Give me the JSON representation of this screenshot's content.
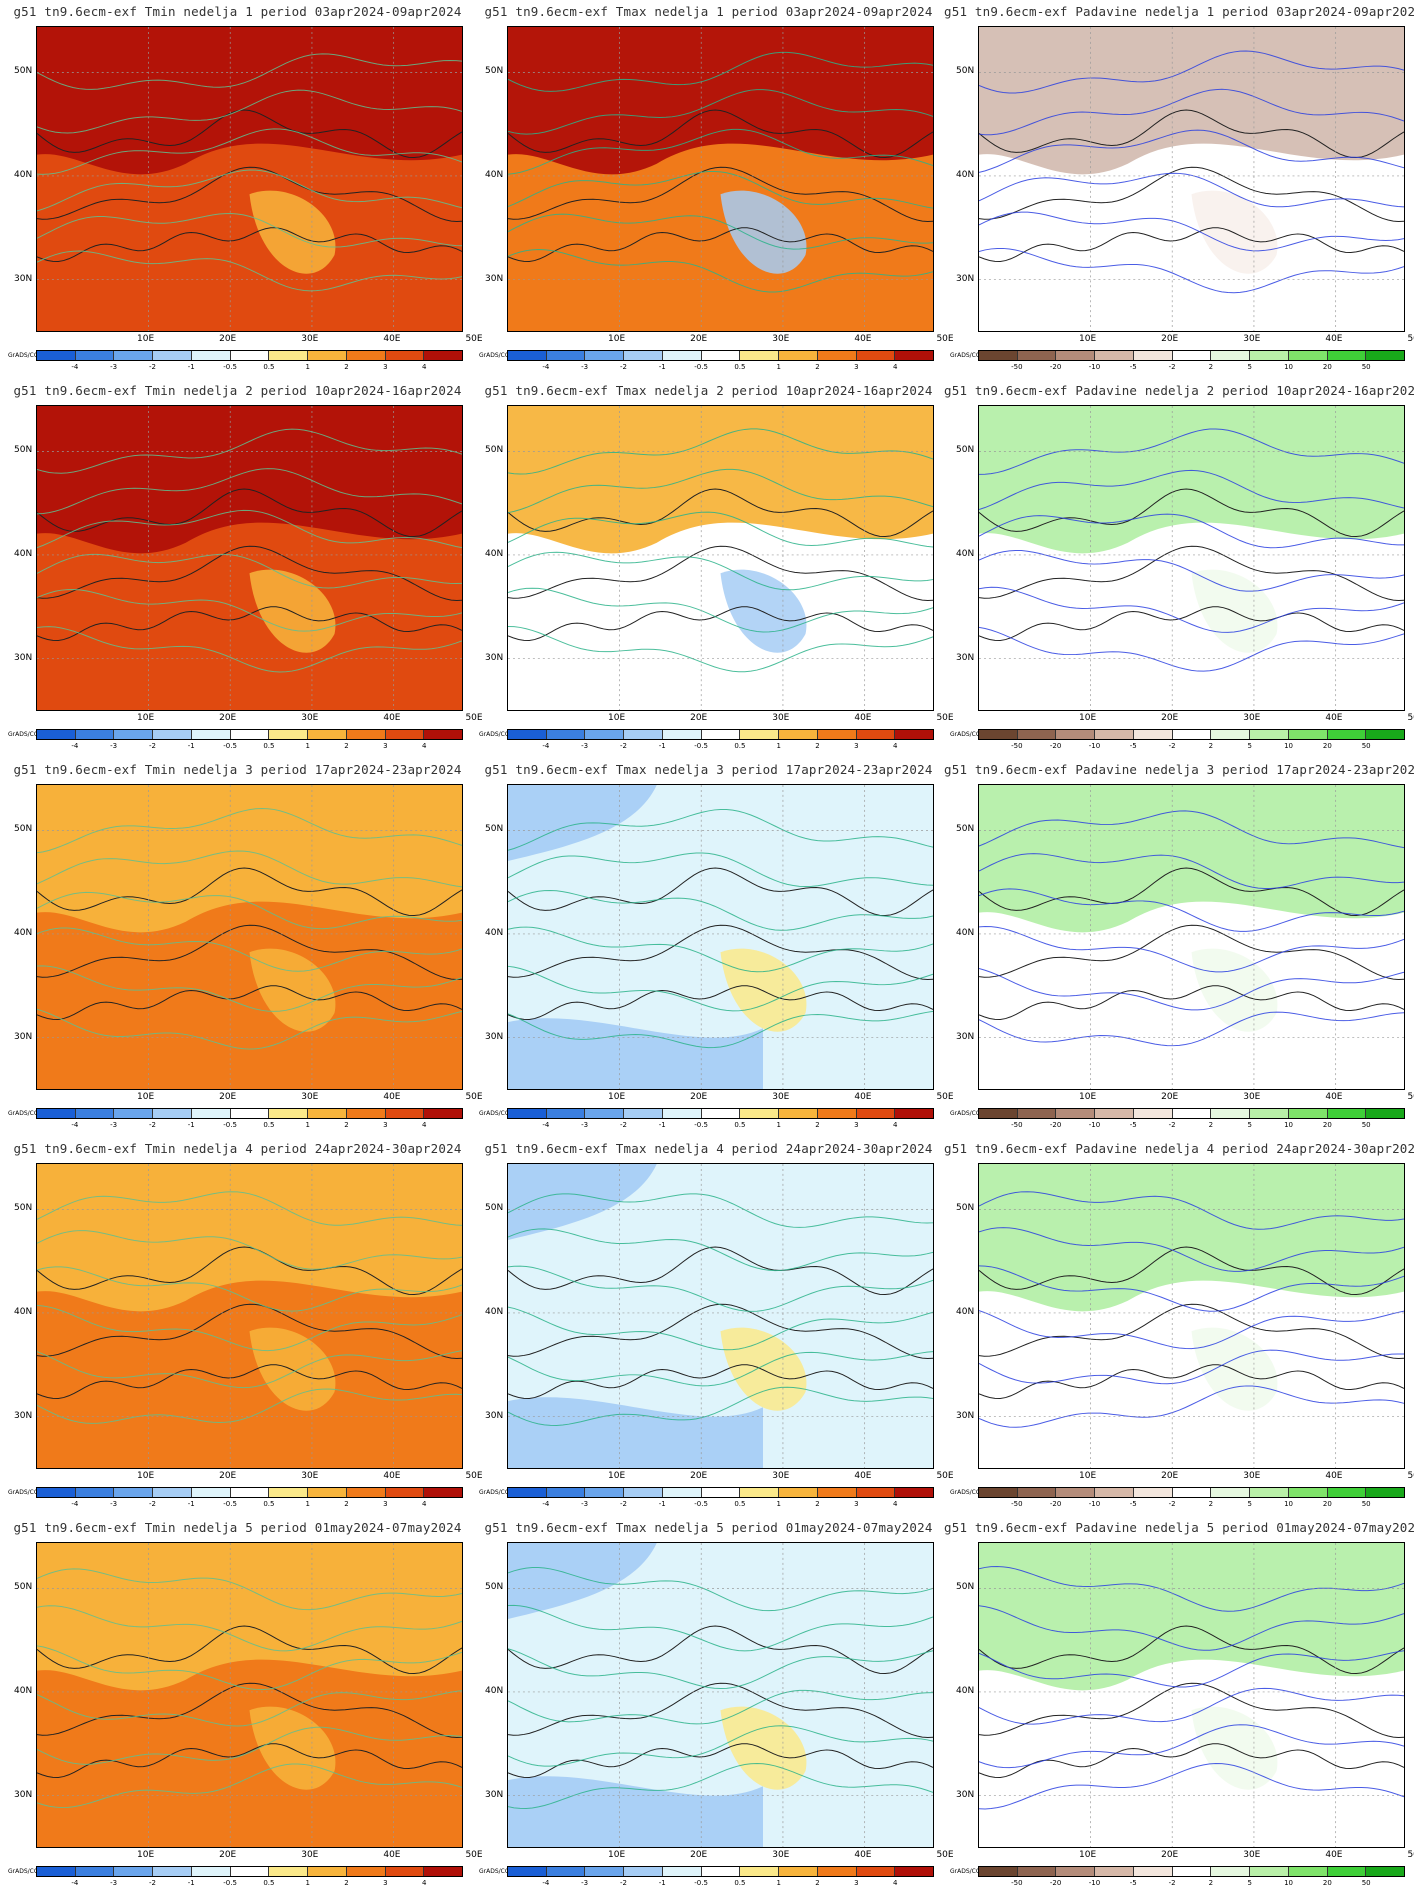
{
  "periods": [
    {
      "week": "1",
      "range": "03apr2024-09apr2024"
    },
    {
      "week": "2",
      "range": "10apr2024-16apr2024"
    },
    {
      "week": "3",
      "range": "17apr2024-23apr2024"
    },
    {
      "week": "4",
      "range": "24apr2024-30apr2024"
    },
    {
      "week": "5",
      "range": "01may2024-07may2024"
    }
  ],
  "panels": [
    {
      "title": "g51 tn9.6ecm-exf Tmin nedelja 1 period 03apr2024-09apr2024",
      "kind": "tmin",
      "legend": "temp",
      "anomaly_level": 3.5
    },
    {
      "title": "g51 tn9.6ecm-exf Tmax nedelja 1 period 03apr2024-09apr2024",
      "kind": "tmax",
      "legend": "temp",
      "anomaly_level": 2.5
    },
    {
      "title": "g51 tn9.6ecm-exf Padavine nedelja 1 period 03apr2024-09apr2024",
      "kind": "prec",
      "legend": "prec",
      "anomaly_level": -8
    },
    {
      "title": "g51 tn9.6ecm-exf Tmin nedelja 2 period 10apr2024-16apr2024",
      "kind": "tmin",
      "legend": "temp",
      "anomaly_level": 3.5
    },
    {
      "title": "g51 tn9.6ecm-exf Tmax nedelja 2 period 10apr2024-16apr2024",
      "kind": "tmax",
      "legend": "temp",
      "anomaly_level": 0.5
    },
    {
      "title": "g51 tn9.6ecm-exf Padavine nedelja 2 period 10apr2024-16apr2024",
      "kind": "prec",
      "legend": "prec",
      "anomaly_level": 8
    },
    {
      "title": "g51 tn9.6ecm-exf Tmin nedelja 3 period 17apr2024-23apr2024",
      "kind": "tmin",
      "legend": "temp",
      "anomaly_level": 2.5
    },
    {
      "title": "g51 tn9.6ecm-exf Tmax nedelja 3 period 17apr2024-23apr2024",
      "kind": "tmax",
      "legend": "temp",
      "anomaly_level": -1
    },
    {
      "title": "g51 tn9.6ecm-exf Padavine nedelja 3 period 17apr2024-23apr2024",
      "kind": "prec",
      "legend": "prec",
      "anomaly_level": 4
    },
    {
      "title": "g51 tn9.6ecm-exf Tmin nedelja 4 period 24apr2024-30apr2024",
      "kind": "tmin",
      "legend": "temp",
      "anomaly_level": 2.5
    },
    {
      "title": "g51 tn9.6ecm-exf Tmax nedelja 4 period 24apr2024-30apr2024",
      "kind": "tmax",
      "legend": "temp",
      "anomaly_level": -1
    },
    {
      "title": "g51 tn9.6ecm-exf Padavine nedelja 4 period 24apr2024-30apr2024",
      "kind": "prec",
      "legend": "prec",
      "anomaly_level": 2
    },
    {
      "title": "g51 tn9.6ecm-exf Tmin nedelja 5 period 01may2024-07may2024",
      "kind": "tmin",
      "legend": "temp",
      "anomaly_level": 2
    },
    {
      "title": "g51 tn9.6ecm-exf Tmax nedelja 5 period 01may2024-07may2024",
      "kind": "tmax",
      "legend": "temp",
      "anomaly_level": -1
    },
    {
      "title": "g51 tn9.6ecm-exf Padavine nedelja 5 period 01may2024-07may2024",
      "kind": "prec",
      "legend": "prec",
      "anomaly_level": 3
    }
  ],
  "axes": {
    "lat_labels": [
      "50N",
      "40N",
      "30N"
    ],
    "lon_labels": [
      "10E",
      "20E",
      "30E",
      "40E",
      "50E"
    ]
  },
  "legends": {
    "temp": {
      "ticks": [
        "-4",
        "-3",
        "-2",
        "-1",
        "-0.5",
        "0.5",
        "1",
        "2",
        "3",
        "4"
      ],
      "colors": [
        "#1a5fd6",
        "#3b7fe0",
        "#6aa5ec",
        "#a6cdf5",
        "#dff4fb",
        "#ffffff",
        "#fbe98a",
        "#f7b43c",
        "#f07a1a",
        "#e04a10",
        "#b01008"
      ]
    },
    "prec": {
      "ticks": [
        "-50",
        "-20",
        "-10",
        "-5",
        "-2",
        "2",
        "5",
        "10",
        "20",
        "50"
      ],
      "colors": [
        "#6b4530",
        "#8e6450",
        "#b48c7a",
        "#d6b8a8",
        "#f3e6dd",
        "#ffffff",
        "#e6f8e0",
        "#b9f0a8",
        "#7fe36a",
        "#3fcf38",
        "#18a81a"
      ]
    }
  },
  "credit": "GrADS/COLA"
}
